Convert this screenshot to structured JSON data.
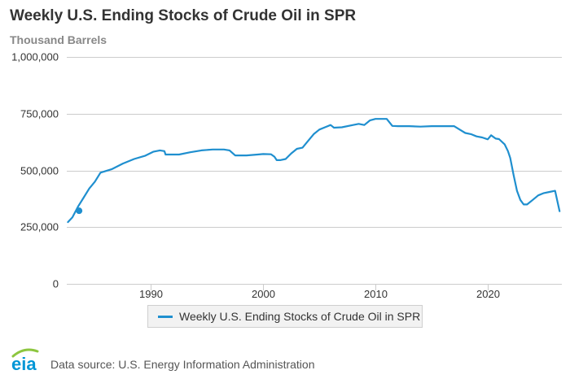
{
  "chart_data": {
    "type": "line",
    "title": "Weekly U.S. Ending Stocks of Crude Oil in SPR",
    "subtitle": "Thousand Barrels",
    "xlabel": "",
    "ylabel": "",
    "xlim": [
      1982.5,
      2026.6
    ],
    "ylim": [
      0,
      1000000
    ],
    "y_ticks": [
      0,
      250000,
      500000,
      750000,
      1000000
    ],
    "y_tick_labels": [
      "0",
      "250,000",
      "500,000",
      "750,000",
      "1,000,000"
    ],
    "x_ticks": [
      1990,
      2000,
      2010,
      2020
    ],
    "x_tick_labels": [
      "1990",
      "2000",
      "2010",
      "2020"
    ],
    "grid": "horizontal",
    "legend_position": "bottom",
    "series": [
      {
        "name": "Weekly U.S. Ending Stocks of Crude Oil in SPR",
        "color": "#1f8fcf",
        "x": [
          1982.6,
          1983.0,
          1983.5,
          1984.0,
          1984.5,
          1985.0,
          1985.5,
          1986.5,
          1987.5,
          1988.5,
          1989.5,
          1990.2,
          1990.8,
          1991.2,
          1991.3,
          1992.5,
          1993.5,
          1994.5,
          1995.5,
          1996.5,
          1997.0,
          1997.5,
          1998.5,
          1999.5,
          2000.0,
          2000.7,
          2001.0,
          2001.2,
          2001.5,
          2002.0,
          2002.5,
          2003.0,
          2003.5,
          2004.0,
          2004.5,
          2005.0,
          2005.5,
          2006.0,
          2006.3,
          2007.0,
          2008.0,
          2008.5,
          2009.0,
          2009.5,
          2010.0,
          2011.0,
          2011.5,
          2012.0,
          2013.0,
          2014.0,
          2015.0,
          2016.0,
          2017.0,
          2017.5,
          2018.0,
          2018.5,
          2019.0,
          2019.5,
          2020.0,
          2020.3,
          2020.7,
          2021.0,
          2021.5,
          2021.8,
          2022.0,
          2022.3,
          2022.6,
          2022.9,
          2023.2,
          2023.5,
          2024.0,
          2024.5,
          2025.0,
          2025.5,
          2026.0,
          2026.4
        ],
        "values": [
          272000,
          293000,
          340000,
          380000,
          420000,
          450000,
          490000,
          505000,
          530000,
          550000,
          565000,
          582000,
          588000,
          585000,
          570000,
          570000,
          580000,
          588000,
          592000,
          592000,
          588000,
          566000,
          566000,
          570000,
          572000,
          571000,
          560000,
          545000,
          545000,
          550000,
          575000,
          595000,
          600000,
          630000,
          660000,
          680000,
          690000,
          700000,
          688000,
          690000,
          700000,
          705000,
          700000,
          720000,
          727000,
          727000,
          696000,
          695000,
          695000,
          693000,
          695000,
          695000,
          695000,
          680000,
          665000,
          660000,
          650000,
          645000,
          637000,
          655000,
          640000,
          638000,
          615000,
          585000,
          555000,
          480000,
          410000,
          370000,
          350000,
          350000,
          370000,
          390000,
          400000,
          405000,
          410000,
          320000
        ]
      }
    ],
    "annotations": [
      {
        "type": "marker",
        "x": 1983.6,
        "value": 322000
      }
    ]
  },
  "legend": {
    "label": "Weekly U.S. Ending Stocks of Crude Oil in SPR",
    "color": "#1f8fcf"
  },
  "footer": {
    "logo_text": "eia",
    "source": "Data source: U.S. Energy Information Administration"
  },
  "colors": {
    "series": "#1f8fcf",
    "logo_blue": "#0096d6",
    "logo_green": "#8dc63f",
    "grid": "#cccccc"
  }
}
